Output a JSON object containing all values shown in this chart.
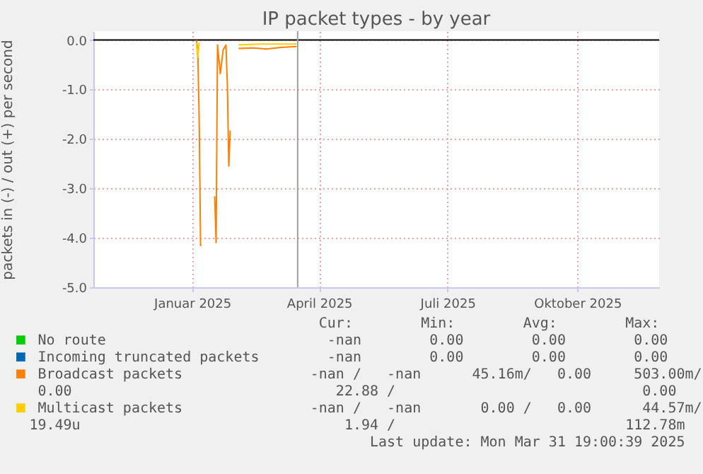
{
  "chart_data": {
    "type": "line",
    "title": "IP packet types - by year",
    "ylabel": "packets in (-) / out (+) per second",
    "xlim": [
      "2024-11-07",
      "2025-12-13"
    ],
    "xticks": [
      {
        "value": "2025-01-16",
        "label": "Januar 2025"
      },
      {
        "value": "2025-04-16",
        "label": "April 2025"
      },
      {
        "value": "2025-07-16",
        "label": "Juli 2025"
      },
      {
        "value": "2025-10-16",
        "label": "Oktober 2025"
      }
    ],
    "ylim": [
      -5,
      0.18
    ],
    "yticks": [
      {
        "value": -5,
        "label": "-5.0"
      },
      {
        "value": -4,
        "label": "-4.0"
      },
      {
        "value": -3,
        "label": "-3.0"
      },
      {
        "value": -2,
        "label": "-2.0"
      },
      {
        "value": -1,
        "label": "-1.0"
      },
      {
        "value": 0,
        "label": "0.0"
      }
    ],
    "grid": true,
    "legend": "bottom",
    "series": [
      {
        "name": "No route",
        "color": "#00cc00"
      },
      {
        "name": "Incoming truncated packets",
        "color": "#0066b3"
      },
      {
        "name": "Broadcast packets",
        "color": "#ff8000",
        "x": [
          "2025-01-19",
          "2025-01-20",
          "2025-01-21",
          "2025-01-22",
          "2025-01-23",
          "2025-02-01",
          "2025-02-02",
          "2025-02-03",
          "2025-02-04",
          "2025-02-05",
          "2025-02-07",
          "2025-02-09",
          "2025-02-10",
          "2025-02-11",
          "2025-02-12",
          "2025-02-13",
          "2025-02-18",
          "2025-02-28",
          "2025-03-10",
          "2025-03-20",
          "2025-03-31"
        ],
        "values": [
          0,
          -0.2,
          -1.6,
          -4.17,
          null,
          -3.16,
          -4.1,
          -0.1,
          -0.4,
          -0.68,
          -0.2,
          -0.1,
          -0.92,
          -2.55,
          -1.83,
          null,
          -0.17,
          -0.16,
          -0.18,
          -0.15,
          -0.13
        ]
      },
      {
        "name": "Multicast packets",
        "color": "#ffcc00",
        "x": [
          "2025-01-19",
          "2025-01-20",
          "2025-01-21",
          "2025-01-22",
          "2025-02-18",
          "2025-03-05",
          "2025-03-31"
        ],
        "values": [
          -0.05,
          -0.35,
          -0.05,
          null,
          -0.1,
          -0.08,
          -0.08
        ]
      }
    ],
    "ref_lines": [
      {
        "axis": "y",
        "value": 0,
        "color": "#000000"
      },
      {
        "axis": "x",
        "value": "2025-03-31T19:00",
        "color": "#a0a0a0"
      }
    ],
    "annotations": [
      "                                  Cur:        Min:        Avg:        Max:",
      "                                   -nan        0.00        0.00        0.00",
      "                                   -nan        0.00        0.00        0.00",
      "                                 -nan /   -nan      45.16m/   0.00     503.00m/",
      " 0.00                               22.88 /                             0.00",
      "                                 -nan /   -nan       0.00 /   0.00      44.57m/",
      "19.49u                               1.94 /                           112.78m",
      "                                        Last update: Mon Mar 31 19:00:39 2025"
    ]
  }
}
